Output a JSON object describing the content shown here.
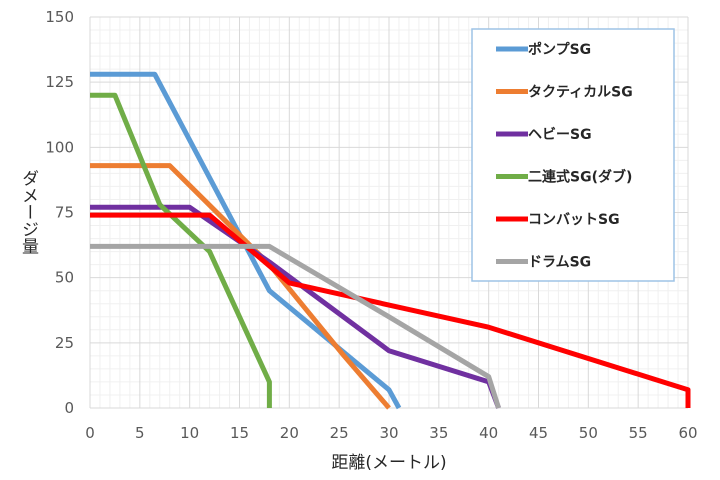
{
  "chart_data": {
    "type": "line",
    "xlabel": "距離(メートル)",
    "ylabel": "ダメージ量",
    "xlim": [
      0,
      60
    ],
    "ylim": [
      0,
      150
    ],
    "x_ticks": [
      0,
      5,
      10,
      15,
      20,
      25,
      30,
      35,
      40,
      45,
      50,
      55,
      60
    ],
    "y_ticks": [
      0,
      25,
      50,
      75,
      100,
      125,
      150
    ],
    "grid": {
      "major_x_step": 5,
      "minor_x_step": 1,
      "major_y_step": 25,
      "minor_y_step": 5
    },
    "legend_position": "top-right",
    "series": [
      {
        "name": "ポンプSG",
        "color": "#5b9bd5",
        "points": [
          [
            0,
            128
          ],
          [
            6.5,
            128
          ],
          [
            18,
            45
          ],
          [
            30,
            7
          ],
          [
            31,
            0
          ]
        ]
      },
      {
        "name": "タクティカルSG",
        "color": "#ed7d31",
        "points": [
          [
            0,
            93
          ],
          [
            8,
            93
          ],
          [
            18,
            55
          ],
          [
            25.5,
            20
          ],
          [
            30,
            0
          ]
        ]
      },
      {
        "name": "ヘビーSG",
        "color": "#7030a0",
        "points": [
          [
            0,
            77
          ],
          [
            10,
            77
          ],
          [
            18,
            56
          ],
          [
            30,
            22
          ],
          [
            40,
            10
          ],
          [
            41,
            0
          ]
        ]
      },
      {
        "name": "二連式SG(ダブ)",
        "color": "#70ad47",
        "points": [
          [
            0,
            120
          ],
          [
            2.5,
            120
          ],
          [
            7,
            78
          ],
          [
            12,
            60
          ],
          [
            18,
            10
          ],
          [
            18,
            0
          ]
        ]
      },
      {
        "name": "コンバットSG",
        "color": "#ff0000",
        "points": [
          [
            0,
            74
          ],
          [
            12,
            74
          ],
          [
            20,
            48
          ],
          [
            40,
            31
          ],
          [
            60,
            7
          ],
          [
            60,
            0
          ]
        ]
      },
      {
        "name": "ドラムSG",
        "color": "#a5a5a5",
        "points": [
          [
            0,
            62
          ],
          [
            18,
            62
          ],
          [
            30,
            35
          ],
          [
            40,
            12
          ],
          [
            41,
            0
          ]
        ]
      }
    ]
  }
}
